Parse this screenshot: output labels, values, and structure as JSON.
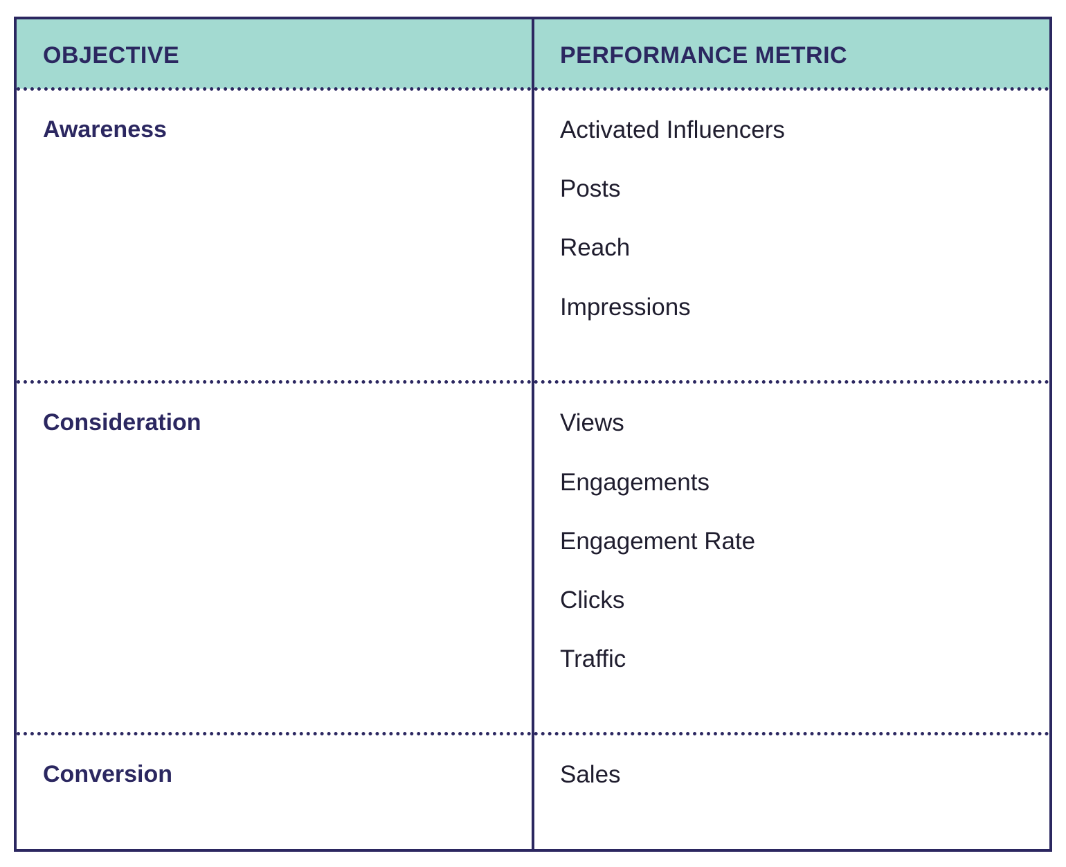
{
  "colors": {
    "header_bg": "#a3dad1",
    "border": "#2b2760",
    "objective_text": "#2b2760",
    "metric_text": "#1f1d2e"
  },
  "headers": {
    "objective": "OBJECTIVE",
    "metric": "PERFORMANCE METRIC"
  },
  "rows": [
    {
      "objective": "Awareness",
      "metrics": [
        "Activated Influencers",
        "Posts",
        "Reach",
        "Impressions"
      ]
    },
    {
      "objective": "Consideration",
      "metrics": [
        "Views",
        "Engagements",
        "Engagement Rate",
        "Clicks",
        "Traffic"
      ]
    },
    {
      "objective": "Conversion",
      "metrics": [
        "Sales"
      ]
    }
  ]
}
